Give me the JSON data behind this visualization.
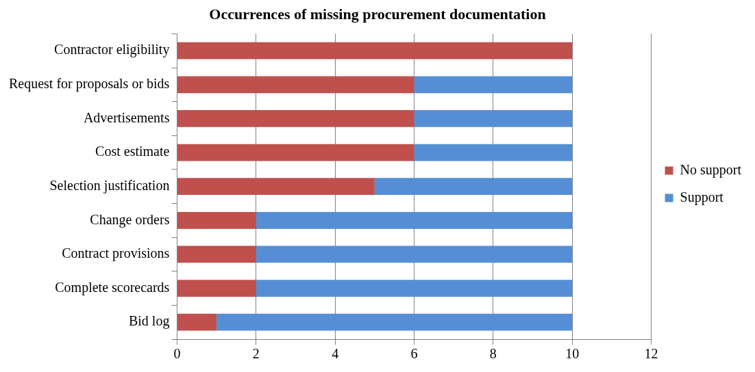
{
  "chart_data": {
    "type": "bar",
    "title": "Occurrences of missing procurement documentation",
    "orientation": "horizontal",
    "stacked": true,
    "categories": [
      "Contractor eligibility",
      "Request for proposals or bids",
      "Advertisements",
      "Cost estimate",
      "Selection justification",
      "Change orders",
      "Contract provisions",
      "Complete scorecards",
      "Bid log"
    ],
    "series": [
      {
        "name": "No support",
        "color": "#c0504d",
        "values": [
          10,
          6,
          6,
          6,
          5,
          2,
          2,
          2,
          1
        ]
      },
      {
        "name": "Support",
        "color": "#558ed5",
        "values": [
          0,
          4,
          4,
          4,
          5,
          8,
          8,
          8,
          9
        ]
      }
    ],
    "xlim": [
      0,
      12
    ],
    "xticks": [
      0,
      2,
      4,
      6,
      8,
      10,
      12
    ],
    "grid": "x",
    "legend": "right"
  }
}
